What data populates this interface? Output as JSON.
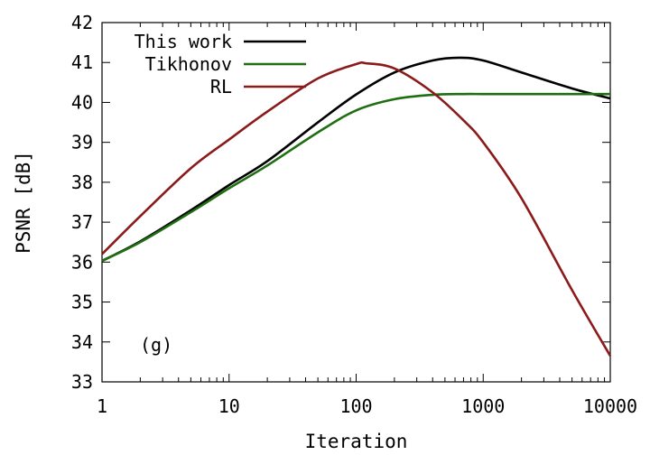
{
  "chart_data": {
    "type": "line",
    "title": "",
    "xlabel": "Iteration",
    "ylabel": "PSNR [dB]",
    "xscale": "log",
    "xlim": [
      1,
      10000
    ],
    "ylim": [
      33,
      42
    ],
    "xticks": [
      1,
      10,
      100,
      1000,
      10000
    ],
    "xtick_labels": [
      "1",
      "10",
      "100",
      "1000",
      "10000"
    ],
    "yticks": [
      33,
      34,
      35,
      36,
      37,
      38,
      39,
      40,
      41,
      42
    ],
    "ytick_labels": [
      "33",
      "34",
      "35",
      "36",
      "37",
      "38",
      "39",
      "40",
      "41",
      "42"
    ],
    "grid": false,
    "legend_position": "top-left",
    "annotation": "(g)",
    "series": [
      {
        "name": "This work",
        "color": "#000000",
        "x": [
          1,
          2,
          5,
          10,
          20,
          50,
          100,
          200,
          400,
          650,
          1000,
          2000,
          5000,
          10000
        ],
        "y": [
          36.03,
          36.52,
          37.3,
          37.93,
          38.53,
          39.5,
          40.2,
          40.75,
          41.05,
          41.12,
          41.05,
          40.75,
          40.35,
          40.1
        ]
      },
      {
        "name": "Tikhonov",
        "color": "#1f6e12",
        "x": [
          1,
          2,
          5,
          10,
          20,
          50,
          100,
          200,
          400,
          700,
          1000,
          2000,
          5000,
          10000
        ],
        "y": [
          36.03,
          36.5,
          37.25,
          37.85,
          38.42,
          39.25,
          39.8,
          40.08,
          40.19,
          40.21,
          40.21,
          40.21,
          40.21,
          40.21
        ]
      },
      {
        "name": "RL",
        "color": "#8b1a1a",
        "x": [
          1,
          2,
          5,
          10,
          20,
          50,
          100,
          120,
          200,
          400,
          700,
          1000,
          2000,
          5000,
          10000
        ],
        "y": [
          36.2,
          37.15,
          38.35,
          39.07,
          39.77,
          40.6,
          40.96,
          40.98,
          40.85,
          40.25,
          39.55,
          39.0,
          37.6,
          35.3,
          33.65
        ]
      }
    ]
  }
}
